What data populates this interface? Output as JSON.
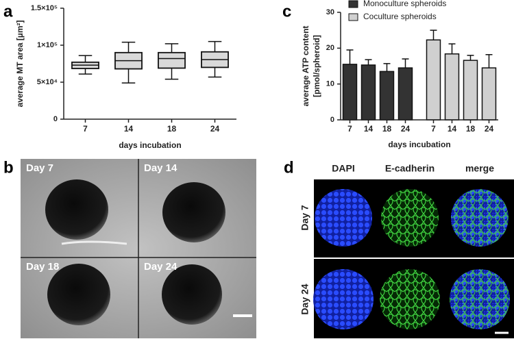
{
  "panel_labels": [
    "a",
    "b",
    "c",
    "d"
  ],
  "chart_data": [
    {
      "type": "box",
      "y_label": "average MT area [µm²]",
      "x_label": "days incubation",
      "categories": [
        "7",
        "14",
        "18",
        "24"
      ],
      "boxes": {
        "min": [
          61000,
          49000,
          54000,
          57000
        ],
        "q1": [
          68500,
          68000,
          69000,
          70000
        ],
        "median": [
          73000,
          79000,
          82000,
          80500
        ],
        "q3": [
          77000,
          90000,
          90000,
          91000
        ],
        "max": [
          86000,
          104000,
          102000,
          105000
        ]
      },
      "color": "#d9d9d9",
      "ylim": [
        0,
        150000
      ],
      "yticks": [
        0,
        {
          "value": 50000,
          "label": "5×10⁴"
        },
        {
          "value": 100000,
          "label": "1×10⁵"
        },
        {
          "value": 150000,
          "label": "1.5×10⁵"
        }
      ]
    },
    {
      "type": "bar",
      "y_label": [
        "average ATP content",
        "[pmol/spheroid]"
      ],
      "x_label": "days incubation",
      "categories": [
        "7",
        "14",
        "18",
        "24"
      ],
      "series": [
        {
          "name": "Monoculture spheroids",
          "color": "#333333",
          "values": [
            15.5,
            15.3,
            13.5,
            14.5
          ],
          "errors": [
            4.0,
            1.5,
            2.2,
            2.5
          ]
        },
        {
          "name": "Coculture spheroids",
          "color": "#d0d0d0",
          "values": [
            22.3,
            18.4,
            16.6,
            14.5
          ],
          "errors": [
            2.7,
            2.8,
            1.4,
            3.7
          ]
        }
      ],
      "ylim": [
        0,
        30
      ],
      "yticks": [
        0,
        10,
        20,
        30
      ]
    }
  ],
  "micrographs": {
    "brightfield": [
      "Day 7",
      "Day 14",
      "Day 18",
      "Day 24"
    ],
    "fluorescence": {
      "channels": [
        "DAPI",
        "E-cadherin",
        "merge"
      ],
      "rows": [
        "Day 7",
        "Day 24"
      ]
    }
  }
}
